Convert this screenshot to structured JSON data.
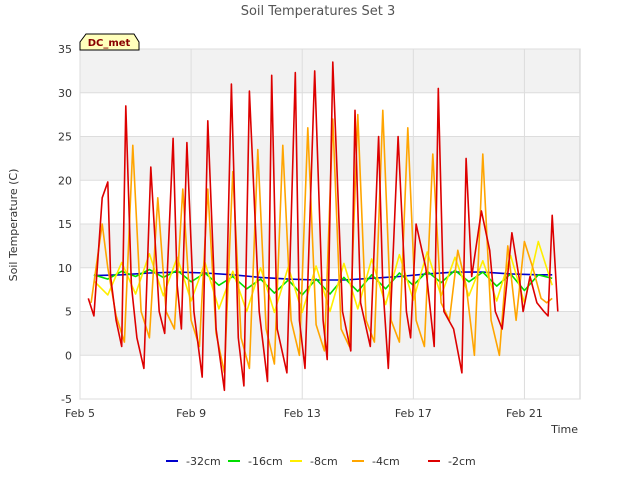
{
  "chart_data": {
    "type": "line",
    "title": "Soil Temperatures Set 3",
    "xlabel": "Time",
    "ylabel": "Soil Temperature (C)",
    "badge": "DC_met",
    "xlim": [
      0,
      18
    ],
    "ylim": [
      -5,
      35
    ],
    "yticks": [
      -5,
      0,
      5,
      10,
      15,
      20,
      25,
      30,
      35
    ],
    "xticks": [
      {
        "x": 0,
        "label": "Feb 5"
      },
      {
        "x": 4,
        "label": "Feb 9"
      },
      {
        "x": 8,
        "label": "Feb 13"
      },
      {
        "x": 12,
        "label": "Feb 17"
      },
      {
        "x": 16,
        "label": "Feb 21"
      }
    ],
    "grid": true,
    "legend_position": "bottom",
    "series": [
      {
        "name": "-32cm",
        "color": "#0000cc",
        "x": [
          0.5,
          1.5,
          2.5,
          3.5,
          4.5,
          5.5,
          6.5,
          7.5,
          8.5,
          9.5,
          10.5,
          11.5,
          12.5,
          13.5,
          14.5,
          15.5,
          16.5,
          17.0
        ],
        "y": [
          9.1,
          9.2,
          9.4,
          9.5,
          9.4,
          9.2,
          8.9,
          8.7,
          8.6,
          8.6,
          8.8,
          9.0,
          9.3,
          9.5,
          9.5,
          9.3,
          9.2,
          9.2
        ]
      },
      {
        "name": "-16cm",
        "color": "#00dd00",
        "x": [
          0.5,
          1.0,
          1.5,
          2.0,
          2.5,
          3.0,
          3.5,
          4.0,
          4.5,
          5.0,
          5.5,
          6.0,
          6.5,
          7.0,
          7.5,
          8.0,
          8.5,
          9.0,
          9.5,
          10.0,
          10.5,
          11.0,
          11.5,
          12.0,
          12.5,
          13.0,
          13.5,
          14.0,
          14.5,
          15.0,
          15.5,
          16.0,
          16.5,
          17.0
        ],
        "y": [
          9.2,
          8.7,
          9.6,
          9.0,
          9.8,
          8.9,
          9.7,
          8.4,
          9.4,
          8.0,
          9.0,
          7.6,
          8.7,
          7.1,
          8.6,
          6.9,
          8.7,
          7.0,
          8.9,
          7.3,
          9.2,
          7.6,
          9.4,
          8.0,
          9.6,
          8.3,
          9.7,
          8.4,
          9.5,
          7.9,
          9.3,
          7.4,
          9.2,
          8.8
        ]
      },
      {
        "name": "-8cm",
        "color": "#ffee00",
        "x": [
          0.5,
          1.0,
          1.5,
          2.0,
          2.5,
          3.0,
          3.5,
          4.0,
          4.5,
          5.0,
          5.5,
          6.0,
          6.5,
          7.0,
          7.5,
          8.0,
          8.5,
          9.0,
          9.5,
          10.0,
          10.5,
          11.0,
          11.5,
          12.0,
          12.5,
          13.0,
          13.5,
          14.0,
          14.5,
          15.0,
          15.5,
          16.0,
          16.5,
          17.0
        ],
        "y": [
          8.5,
          6.9,
          10.6,
          7.0,
          11.6,
          6.8,
          11.2,
          6.2,
          10.6,
          5.3,
          9.6,
          5.0,
          10.0,
          4.9,
          10.1,
          4.9,
          10.2,
          5.0,
          10.5,
          5.3,
          11.0,
          5.8,
          11.5,
          6.3,
          11.8,
          6.8,
          11.2,
          6.8,
          10.8,
          6.2,
          11.4,
          6.0,
          13.0,
          8.0
        ]
      },
      {
        "name": "-4cm",
        "color": "#ffa500",
        "x": [
          0.4,
          0.8,
          1.0,
          1.3,
          1.6,
          1.9,
          2.2,
          2.5,
          2.8,
          3.1,
          3.4,
          3.7,
          4.0,
          4.3,
          4.6,
          4.9,
          5.2,
          5.5,
          5.8,
          6.1,
          6.4,
          6.7,
          7.0,
          7.3,
          7.6,
          7.9,
          8.2,
          8.5,
          8.8,
          9.1,
          9.4,
          9.7,
          10.0,
          10.3,
          10.6,
          10.9,
          11.2,
          11.5,
          11.8,
          12.1,
          12.4,
          12.7,
          13.0,
          13.3,
          13.6,
          13.9,
          14.2,
          14.5,
          14.8,
          15.1,
          15.4,
          15.7,
          16.0,
          16.3,
          16.6,
          16.8,
          17.0
        ],
        "y": [
          6.0,
          15.0,
          10.0,
          4.5,
          1.5,
          24.0,
          5.0,
          2.0,
          18.0,
          5.0,
          3.0,
          19.0,
          4.0,
          1.0,
          19.0,
          2.5,
          -2.0,
          21.0,
          2.0,
          -1.5,
          23.5,
          3.0,
          -1.0,
          24.0,
          4.0,
          0.0,
          26.0,
          3.5,
          0.5,
          27.0,
          3.0,
          1.0,
          27.5,
          4.0,
          1.5,
          28.0,
          4.0,
          1.5,
          26.0,
          4.0,
          1.0,
          23.0,
          6.0,
          4.0,
          12.0,
          8.0,
          0.0,
          23.0,
          4.0,
          0.0,
          12.5,
          4.0,
          13.0,
          10.0,
          6.5,
          6.0,
          6.5
        ]
      },
      {
        "name": "-2cm",
        "color": "#dd0000",
        "x": [
          0.3,
          0.5,
          0.8,
          1.0,
          1.1,
          1.3,
          1.5,
          1.65,
          1.85,
          2.05,
          2.3,
          2.55,
          2.85,
          3.05,
          3.35,
          3.5,
          3.65,
          3.85,
          4.1,
          4.4,
          4.6,
          4.9,
          5.2,
          5.45,
          5.7,
          5.9,
          6.1,
          6.45,
          6.75,
          6.9,
          7.1,
          7.45,
          7.75,
          7.9,
          8.1,
          8.45,
          8.75,
          8.9,
          9.1,
          9.45,
          9.75,
          9.9,
          10.1,
          10.45,
          10.75,
          10.9,
          11.1,
          11.45,
          11.75,
          11.9,
          12.1,
          12.45,
          12.75,
          12.9,
          13.1,
          13.45,
          13.75,
          13.9,
          14.1,
          14.45,
          14.75,
          14.95,
          15.2,
          15.55,
          15.85,
          15.95,
          16.2,
          16.45,
          16.7,
          16.85,
          17.0,
          17.2
        ],
        "y": [
          6.5,
          4.5,
          18.0,
          19.8,
          9.0,
          4.0,
          1.0,
          28.5,
          8.0,
          2.0,
          -1.5,
          21.5,
          5.0,
          2.5,
          24.8,
          8.0,
          3.0,
          24.3,
          5.0,
          -2.5,
          26.8,
          3.0,
          -4.0,
          31.0,
          2.0,
          -3.5,
          30.2,
          5.0,
          -3.0,
          32.0,
          3.0,
          -2.0,
          32.3,
          4.0,
          -1.5,
          32.5,
          4.0,
          -0.5,
          33.5,
          5.0,
          0.5,
          28.0,
          6.0,
          1.0,
          25.0,
          8.0,
          -1.5,
          25.0,
          5.0,
          2.0,
          15.0,
          10.0,
          1.0,
          30.5,
          5.0,
          3.0,
          -2.0,
          22.5,
          9.0,
          16.5,
          12.0,
          5.0,
          3.0,
          14.0,
          8.0,
          5.0,
          9.0,
          6.0,
          5.0,
          4.5,
          16.0,
          5.0
        ]
      }
    ]
  }
}
